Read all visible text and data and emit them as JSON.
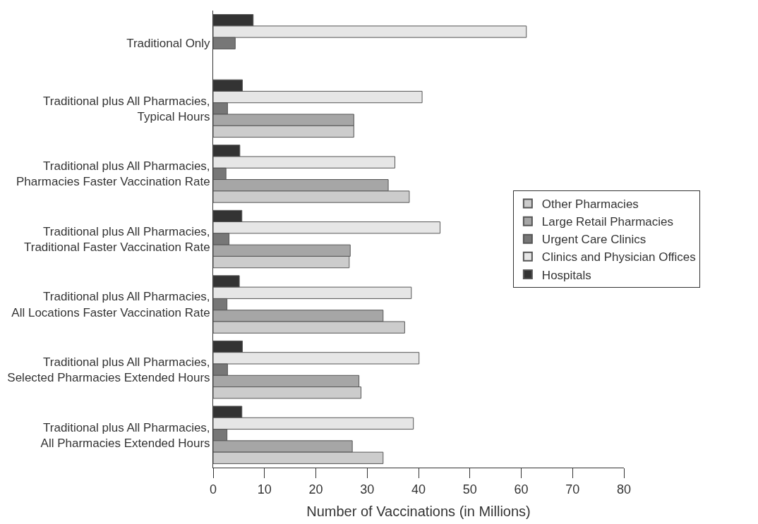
{
  "chart_data": {
    "type": "bar",
    "orientation": "horizontal",
    "xlabel": "Number of Vaccinations (in Millions)",
    "categories": [
      "Traditional Only",
      "Traditional plus All Pharmacies, Typical Hours",
      "Traditional plus All Pharmacies, Pharmacies Faster Vaccination Rate",
      "Traditional plus All Pharmacies, Traditional Faster Vaccination Rate",
      "Traditional plus All Pharmacies, All Locations Faster Vaccination Rate",
      "Traditional plus All Pharmacies, Selected Pharmacies Extended Hours",
      "Traditional plus All Pharmacies, All Pharmacies Extended Hours"
    ],
    "series": [
      {
        "name": "Hospitals",
        "color": "#333333",
        "values": [
          7.8,
          5.7,
          5.2,
          5.6,
          5.1,
          5.7,
          5.6
        ]
      },
      {
        "name": "Clinics and Physician Offices",
        "color": "#e6e6e6",
        "values": [
          61.0,
          40.7,
          35.4,
          44.2,
          38.6,
          40.1,
          39.0
        ]
      },
      {
        "name": "Urgent Care Clinics",
        "color": "#777777",
        "values": [
          4.3,
          2.8,
          2.5,
          3.1,
          2.7,
          2.8,
          2.7
        ]
      },
      {
        "name": "Large Retail Pharmacies",
        "color": "#a6a6a6",
        "values": [
          null,
          27.4,
          34.1,
          26.7,
          33.1,
          28.4,
          27.1
        ]
      },
      {
        "name": "Other Pharmacies",
        "color": "#cccccc",
        "values": [
          null,
          27.4,
          38.2,
          26.5,
          37.3,
          28.8,
          33.1
        ]
      }
    ],
    "xlim": [
      0,
      80
    ],
    "xticks": [
      0,
      10,
      20,
      30,
      40,
      50,
      60,
      70,
      80
    ],
    "legend": "right"
  }
}
